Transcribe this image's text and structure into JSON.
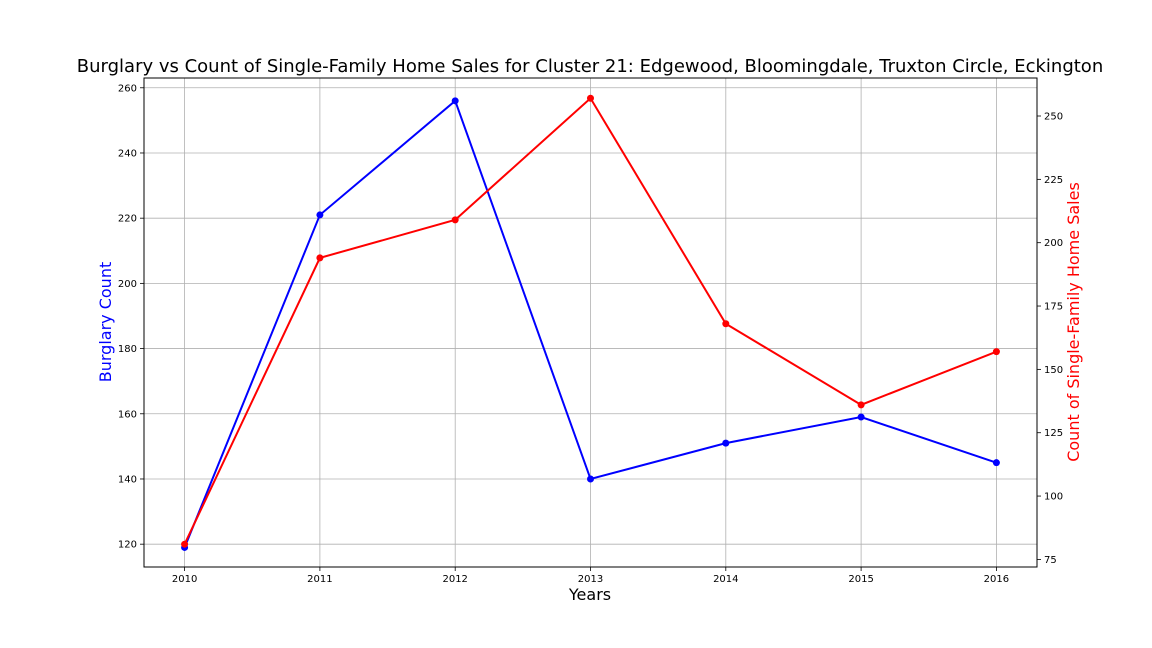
{
  "chart_data": {
    "type": "line",
    "title": "Burglary vs Count of Single-Family Home Sales for Cluster 21: Edgewood, Bloomingdale, Truxton Circle, Eckington",
    "xlabel": "Years",
    "x": [
      2010,
      2011,
      2012,
      2013,
      2014,
      2015,
      2016
    ],
    "x_tick_labels": [
      "2010",
      "2011",
      "2012",
      "2013",
      "2014",
      "2015",
      "2016"
    ],
    "xlim": [
      2009.7,
      2016.3
    ],
    "grid": true,
    "left_axis": {
      "label": "Burglary Count",
      "color": "#0000ff",
      "ylim": [
        113,
        263
      ],
      "ticks": [
        120,
        140,
        160,
        180,
        200,
        220,
        240,
        260
      ],
      "tick_labels": [
        "120",
        "140",
        "160",
        "180",
        "200",
        "220",
        "240",
        "260"
      ]
    },
    "right_axis": {
      "label": "Count of Single-Family Home Sales",
      "color": "#ff0000",
      "ylim": [
        72,
        265
      ],
      "ticks": [
        75,
        100,
        125,
        150,
        175,
        200,
        225,
        250
      ],
      "tick_labels": [
        "75",
        "100",
        "125",
        "150",
        "175",
        "200",
        "225",
        "250"
      ]
    },
    "series": [
      {
        "axis": "left",
        "color": "#0000ff",
        "values": [
          119,
          221,
          256,
          140,
          151,
          159,
          145
        ]
      },
      {
        "axis": "right",
        "color": "#ff0000",
        "values": [
          81,
          194,
          209,
          257,
          168,
          136,
          157
        ]
      }
    ]
  }
}
